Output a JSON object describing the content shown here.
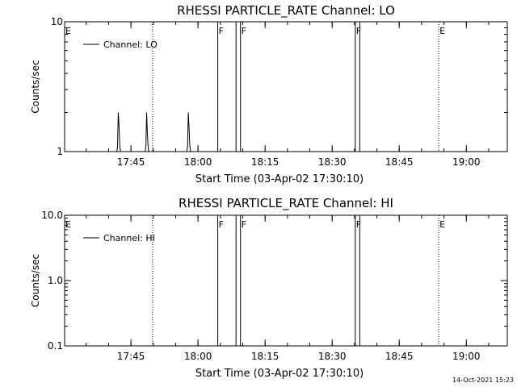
{
  "footer": {
    "timestamp": "14-Oct-2021 15:23"
  },
  "chart_data": [
    {
      "type": "line",
      "title": "RHESSI PARTICLE_RATE Channel: LO",
      "xlabel": "Start Time (03-Apr-02 17:30:10)",
      "ylabel": "Counts/sec",
      "y_scale": "log",
      "ylim": [
        1,
        10
      ],
      "y_ticks": [
        "1",
        "10"
      ],
      "x_range_seconds": [
        0,
        5940
      ],
      "x_ticks": [
        {
          "label": "17:45",
          "x": 890
        },
        {
          "label": "18:00",
          "x": 1790
        },
        {
          "label": "18:15",
          "x": 2690
        },
        {
          "label": "18:30",
          "x": 3590
        },
        {
          "label": "18:45",
          "x": 4490
        },
        {
          "label": "19:00",
          "x": 5390
        }
      ],
      "grid": false,
      "legend_position": "top-left",
      "series": [
        {
          "name": "Channel: LO",
          "x": [
            0,
            700,
            710,
            720,
            730,
            740,
            750,
            1080,
            1090,
            1100,
            1110,
            1120,
            1130,
            1640,
            1650,
            1660,
            1670,
            1680,
            1690,
            5940
          ],
          "values": [
            1,
            1,
            1.1,
            2.0,
            1.6,
            1.1,
            1,
            1,
            1.1,
            2.0,
            1.4,
            1.1,
            1,
            1,
            1.1,
            2.0,
            1.5,
            1.1,
            1,
            1
          ]
        }
      ],
      "events": [
        {
          "label": "E",
          "x": 0,
          "style": "dotted"
        },
        {
          "label": "",
          "x": 1180,
          "style": "dotted"
        },
        {
          "label": "F",
          "x": 2055,
          "style": "solid"
        },
        {
          "label": "",
          "x": 2300,
          "style": "solid"
        },
        {
          "label": "F",
          "x": 2360,
          "style": "solid"
        },
        {
          "label": "F",
          "x": 3900,
          "style": "solid"
        },
        {
          "label": "",
          "x": 3960,
          "style": "solid"
        },
        {
          "label": "E",
          "x": 5020,
          "style": "dotted"
        },
        {
          "label": "",
          "x": 6100,
          "style": "dotted"
        }
      ]
    },
    {
      "type": "line",
      "title": "RHESSI PARTICLE_RATE Channel: HI",
      "xlabel": "Start Time (03-Apr-02 17:30:10)",
      "ylabel": "Counts/sec",
      "y_scale": "log",
      "ylim": [
        0.1,
        10
      ],
      "y_ticks": [
        "0.1",
        "1.0",
        "10.0"
      ],
      "x_range_seconds": [
        0,
        5940
      ],
      "x_ticks": [
        {
          "label": "17:45",
          "x": 890
        },
        {
          "label": "18:00",
          "x": 1790
        },
        {
          "label": "18:15",
          "x": 2690
        },
        {
          "label": "18:30",
          "x": 3590
        },
        {
          "label": "18:45",
          "x": 4490
        },
        {
          "label": "19:00",
          "x": 5390
        }
      ],
      "grid": false,
      "legend_position": "top-left",
      "series": [
        {
          "name": "Channel: HI",
          "x": [],
          "values": []
        }
      ],
      "events": [
        {
          "label": "E",
          "x": 0,
          "style": "dotted"
        },
        {
          "label": "",
          "x": 1180,
          "style": "dotted"
        },
        {
          "label": "F",
          "x": 2055,
          "style": "solid"
        },
        {
          "label": "",
          "x": 2300,
          "style": "solid"
        },
        {
          "label": "F",
          "x": 2360,
          "style": "solid"
        },
        {
          "label": "F",
          "x": 3900,
          "style": "solid"
        },
        {
          "label": "",
          "x": 3960,
          "style": "solid"
        },
        {
          "label": "E",
          "x": 5020,
          "style": "dotted"
        },
        {
          "label": "",
          "x": 6100,
          "style": "dotted"
        }
      ]
    }
  ]
}
